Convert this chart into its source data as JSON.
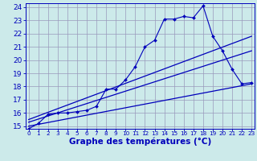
{
  "xlabel": "Graphe des températures (°C)",
  "bg_color": "#cceaea",
  "grid_color": "#9999bb",
  "line_color": "#0000bb",
  "hours": [
    0,
    1,
    2,
    3,
    4,
    5,
    6,
    7,
    8,
    9,
    10,
    11,
    12,
    13,
    14,
    15,
    16,
    17,
    18,
    19,
    20,
    21,
    22,
    23
  ],
  "line_spiky": [
    14.8,
    15.2,
    15.9,
    16.0,
    16.0,
    16.1,
    16.2,
    16.5,
    17.8,
    17.8,
    18.5,
    19.5,
    21.0,
    21.5,
    23.1,
    23.1,
    23.3,
    23.2,
    24.1,
    21.8,
    20.7,
    19.3,
    18.2,
    18.3
  ],
  "line_upper_straight": [
    [
      0,
      15.5
    ],
    [
      23,
      21.8
    ]
  ],
  "line_mid_straight": [
    [
      0,
      15.3
    ],
    [
      23,
      20.7
    ]
  ],
  "line_lower_straight": [
    [
      0,
      15.0
    ],
    [
      23,
      18.2
    ]
  ],
  "ylim": [
    14.8,
    24.3
  ],
  "xlim": [
    -0.3,
    23.3
  ],
  "yticks": [
    15,
    16,
    17,
    18,
    19,
    20,
    21,
    22,
    23,
    24
  ],
  "xticks": [
    0,
    1,
    2,
    3,
    4,
    5,
    6,
    7,
    8,
    9,
    10,
    11,
    12,
    13,
    14,
    15,
    16,
    17,
    18,
    19,
    20,
    21,
    22,
    23
  ],
  "xlabel_fontsize": 7.5,
  "ytick_fontsize": 6.5,
  "xtick_fontsize": 5.2
}
